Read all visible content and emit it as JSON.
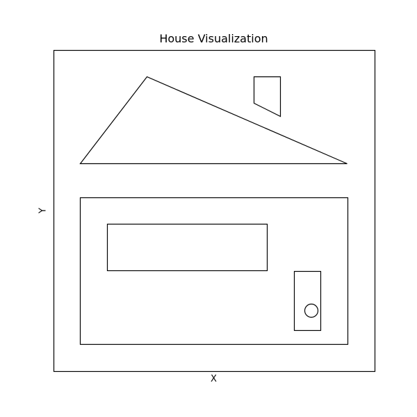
{
  "figure": {
    "title": "House Visualization",
    "xlabel": "X",
    "ylabel": "Y"
  },
  "colors": {
    "background": "#ffffff",
    "stroke": "#000000"
  },
  "shapes": [
    "roof-triangle",
    "chimney",
    "house-body",
    "window",
    "door",
    "doorknob"
  ]
}
